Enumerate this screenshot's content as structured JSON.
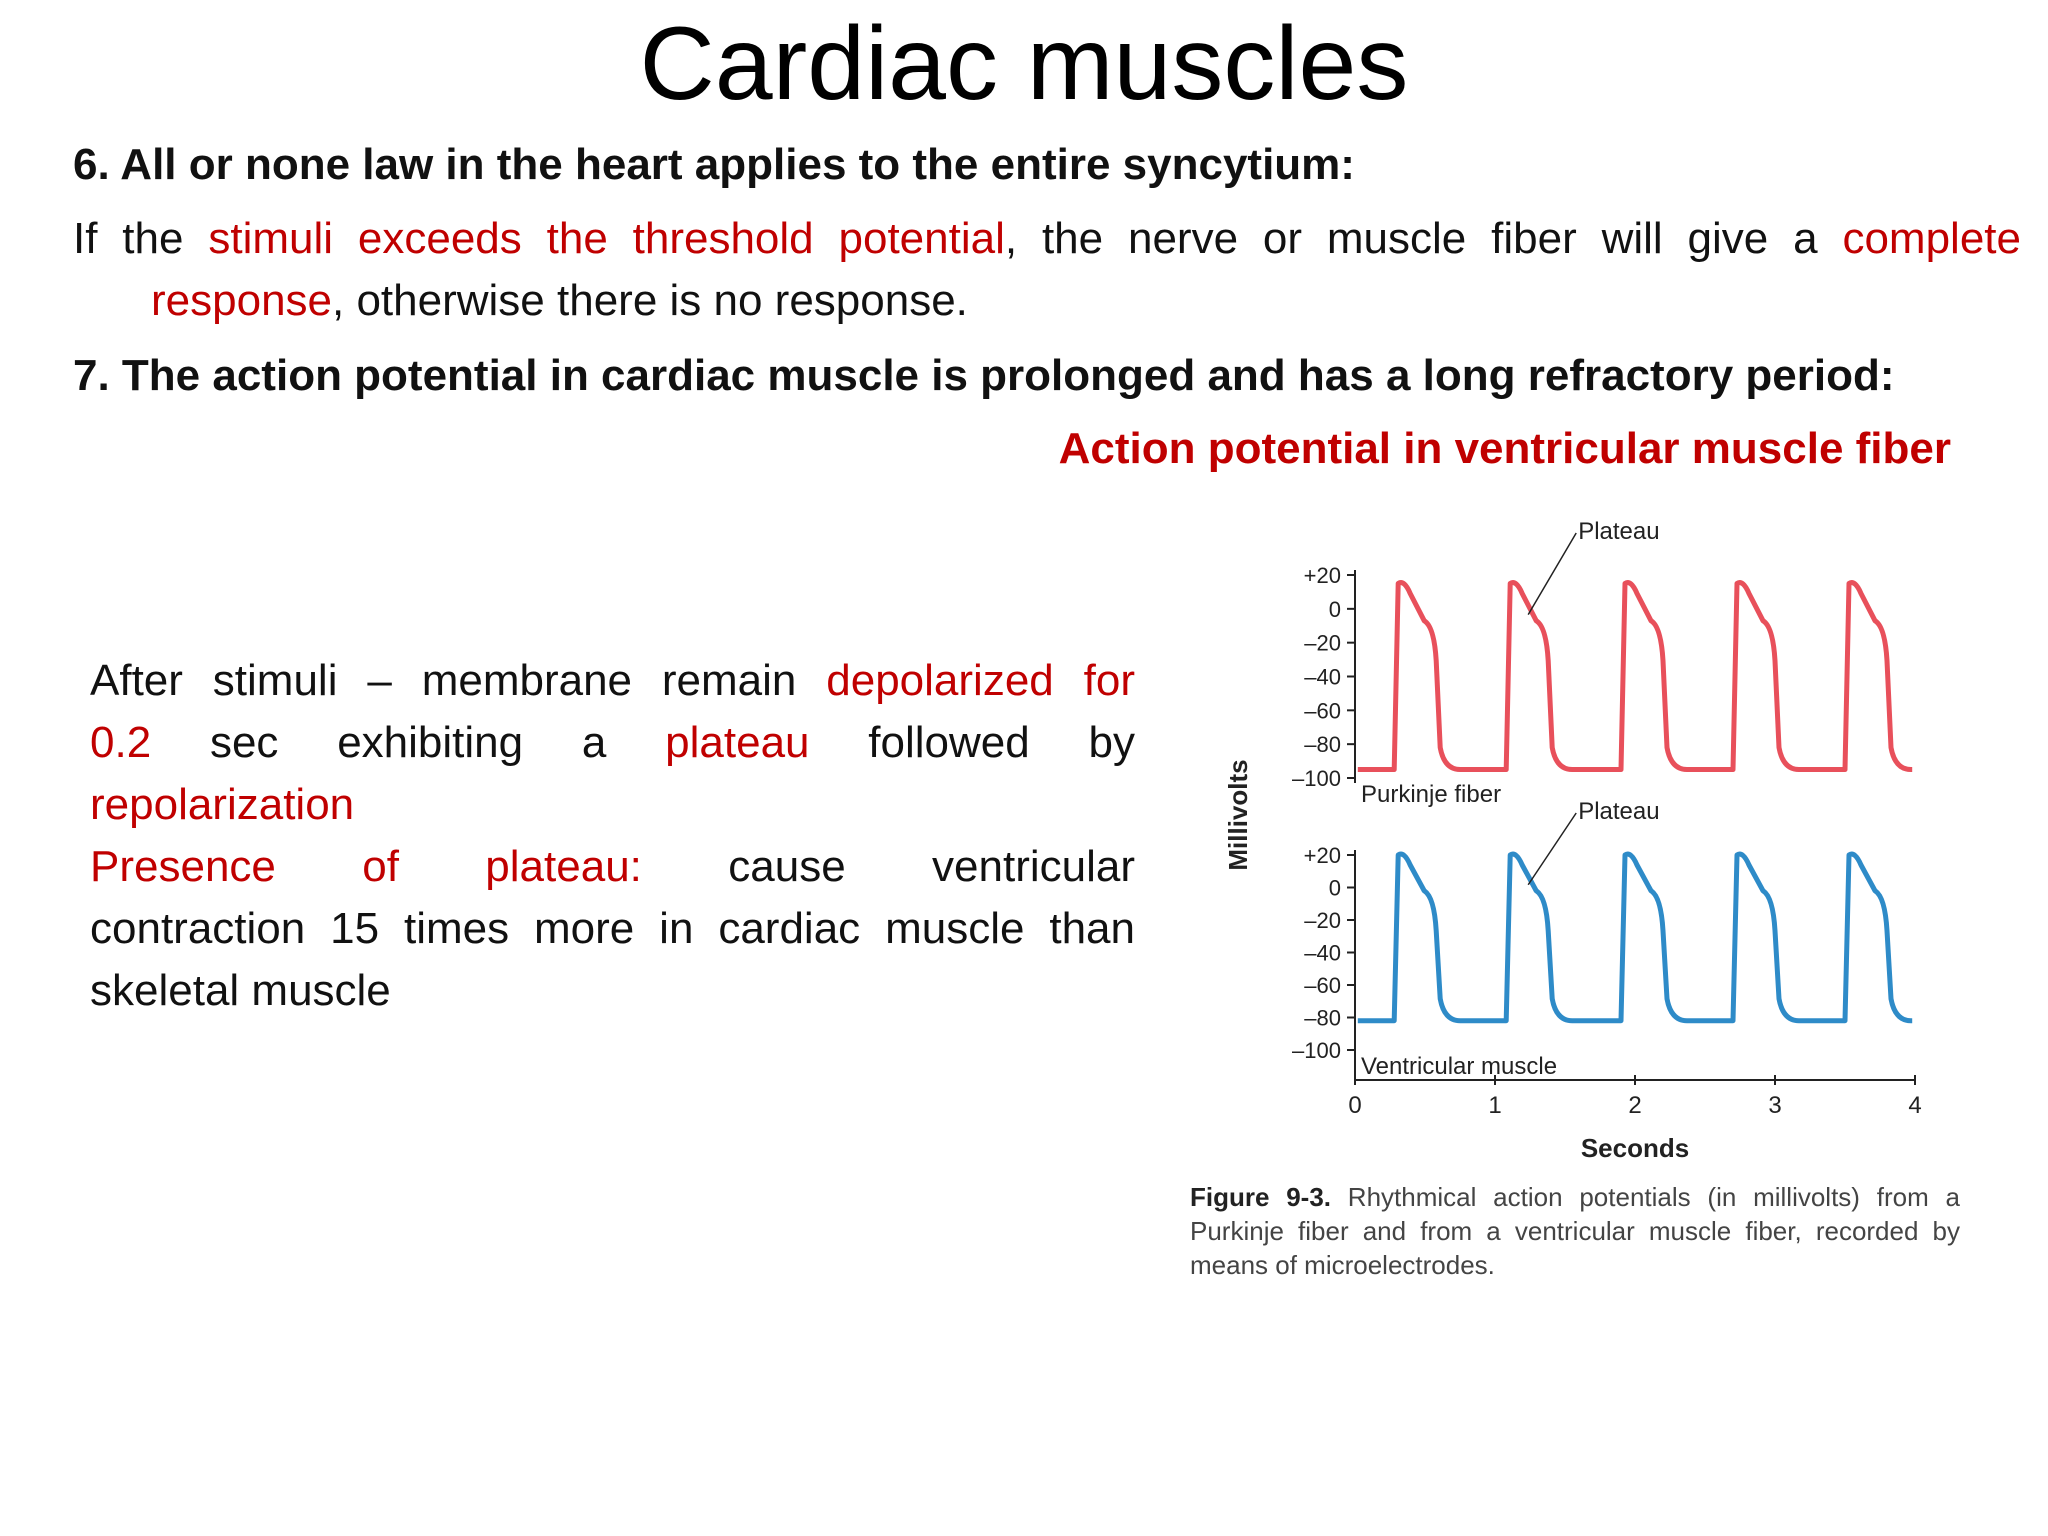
{
  "title": "Cardiac muscles",
  "point6": {
    "heading": "6. All or none law in the heart applies to the entire syncytium:",
    "body_1": "If the ",
    "body_red_1": "stimuli exceeds the threshold potential",
    "body_2": ", the nerve or muscle fiber will give a ",
    "body_red_2": "complete response",
    "body_3": ", otherwise there is no response."
  },
  "point7": {
    "heading": "7. The action potential in cardiac muscle is prolonged and has a long refractory period:"
  },
  "figure_heading": "Action potential in ventricular muscle fiber",
  "left_text": {
    "l1_a": "After stimuli – membrane remain ",
    "l1_red": "depolarized for",
    "l2_red": "0.2",
    "l2_a": " sec exhibiting a ",
    "l2_red2": "plateau",
    "l2_b": " followed by",
    "l3_red": "repolarization",
    "l4_red": "Presence of plateau:",
    "l4_a": " cause ventricular",
    "l5": "contraction 15 times more in cardiac muscle than",
    "l6": "skeletal muscle"
  },
  "chart_data": {
    "type": "line",
    "ylabel": "Millivolts",
    "xlabel": "Seconds",
    "x_ticks": [
      "0",
      "1",
      "2",
      "3",
      "4"
    ],
    "xlim": [
      0,
      4
    ],
    "panels": [
      {
        "name": "Purkinje fiber",
        "color": "#e8505b",
        "y_ticks": [
          "+20",
          "0",
          "–20",
          "–40",
          "–60",
          "–80",
          "–100"
        ],
        "ylim": [
          -100,
          20
        ],
        "annotation": "Plateau",
        "beat_starts": [
          0.28,
          1.08,
          1.9,
          2.7,
          3.5
        ],
        "resting_mv": -95,
        "peak_mv": 15
      },
      {
        "name": "Ventricular muscle",
        "color": "#2e8bc8",
        "y_ticks": [
          "+20",
          "0",
          "–20",
          "–40",
          "–60",
          "–80",
          "–100"
        ],
        "ylim": [
          -100,
          20
        ],
        "annotation": "Plateau",
        "beat_starts": [
          0.28,
          1.08,
          1.9,
          2.7,
          3.5
        ],
        "resting_mv": -82,
        "peak_mv": 20
      }
    ]
  },
  "caption": {
    "label": "Figure 9-3.",
    "text": " Rhythmical action potentials (in millivolts) from a Purkinje fiber and from a ventricular muscle fiber, recorded by means of microelectrodes."
  }
}
